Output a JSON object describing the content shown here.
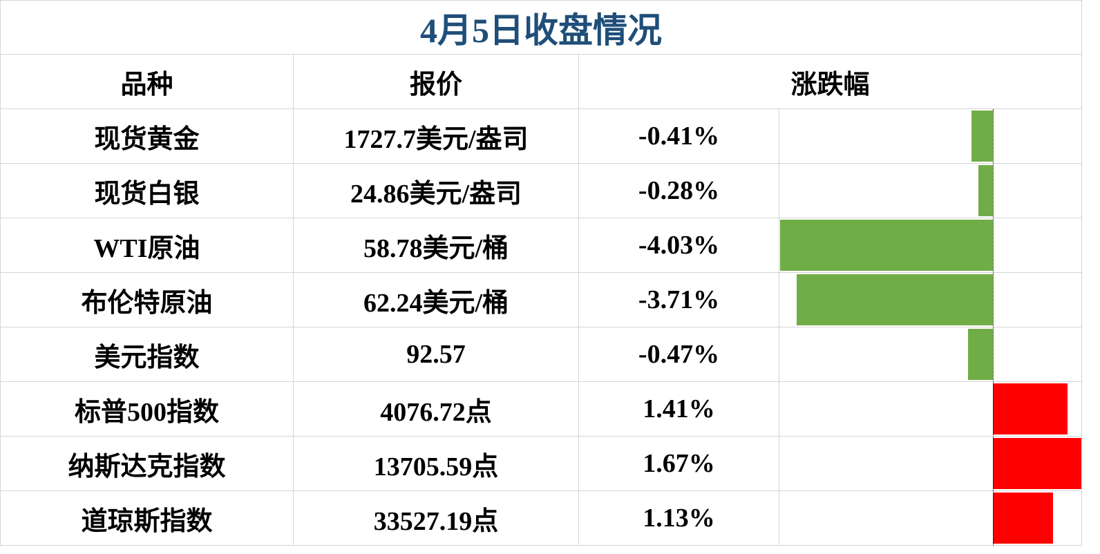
{
  "title": "4月5日收盘情况",
  "table": {
    "headers": [
      "品种",
      "报价",
      "涨跌幅"
    ],
    "rows": [
      {
        "name": "现货黄金",
        "price": "1727.7美元/盎司",
        "change": {
          "value": -0.41,
          "label": "-0.41%"
        }
      },
      {
        "name": "现货白银",
        "price": "24.86美元/盎司",
        "change": {
          "value": -0.28,
          "label": "-0.28%"
        }
      },
      {
        "name": "WTI原油",
        "price": "58.78美元/桶",
        "change": {
          "value": -4.03,
          "label": "-4.03%"
        }
      },
      {
        "name": "布伦特原油",
        "price": "62.24美元/桶",
        "change": {
          "value": -3.71,
          "label": "-3.71%"
        }
      },
      {
        "name": "美元指数",
        "price": "92.57",
        "change": {
          "value": -0.47,
          "label": "-0.47%"
        }
      },
      {
        "name": "标普500指数",
        "price": "4076.72点",
        "change": {
          "value": 1.41,
          "label": "1.41%"
        }
      },
      {
        "name": "纳斯达克指数",
        "price": "13705.59点",
        "change": {
          "value": 1.67,
          "label": "1.67%"
        }
      },
      {
        "name": "道琼斯指数",
        "price": "33527.19点",
        "change": {
          "value": 1.13,
          "label": "1.13%"
        }
      }
    ],
    "negative_color": "#70ad47",
    "positive_color": "#ff0000"
  }
}
